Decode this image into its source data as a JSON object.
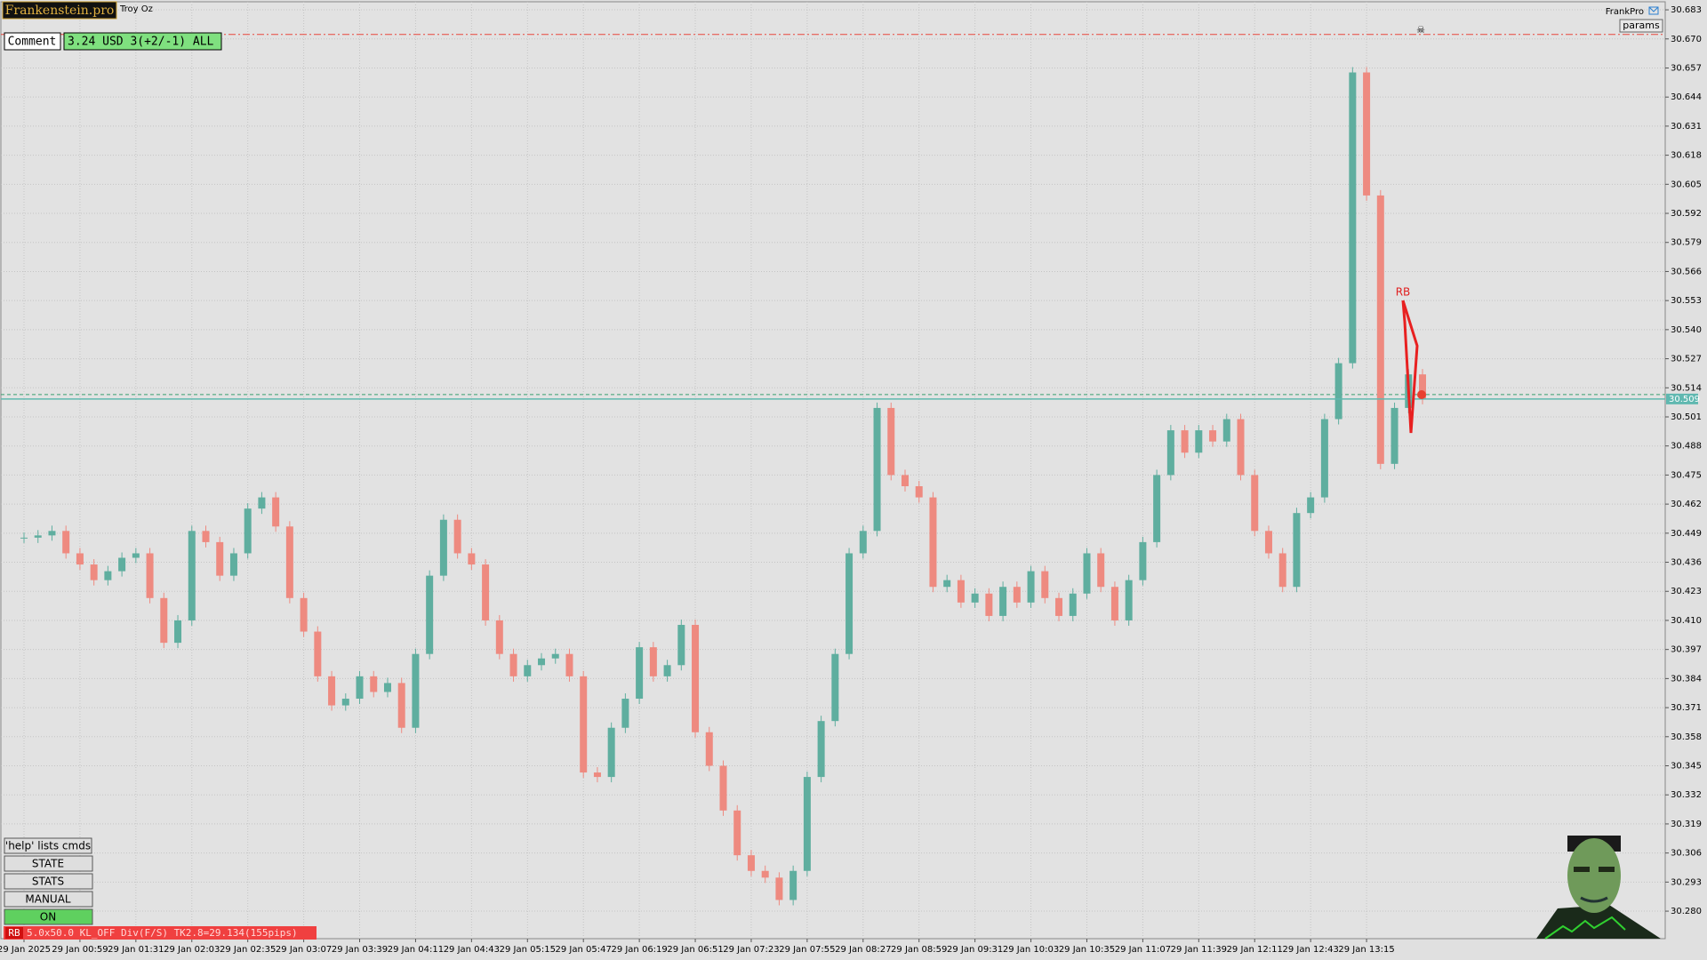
{
  "header": {
    "brand": "Frankenstein.pro",
    "symbol": "Troy Oz",
    "comment_label": "Comment",
    "comment_value": "3.24 USD 3(+2/-1) ALL",
    "ea_name": "FrankPro",
    "params": "params"
  },
  "buttons": [
    "'help' lists cmds",
    "STATE",
    "STATS",
    "MANUAL",
    "ON"
  ],
  "status": {
    "tag": "RB",
    "text": "5.0x50.0 KL_OFF Div(F/S) TK2.8=29.134(155pips)"
  },
  "annotation": "RB",
  "chart_data": {
    "type": "candlestick",
    "up_color": "#5fae9f",
    "down_color": "#ee8a80",
    "categories": [
      "29 Jan 2025",
      null,
      null,
      null,
      "29 Jan 00:59",
      null,
      null,
      null,
      "29 Jan 01:31",
      null,
      null,
      null,
      "29 Jan 02:03",
      null,
      null,
      null,
      "29 Jan 02:35",
      null,
      null,
      null,
      "29 Jan 03:07",
      null,
      null,
      null,
      "29 Jan 03:39",
      null,
      null,
      null,
      "29 Jan 04:11",
      null,
      null,
      null,
      "29 Jan 04:43",
      null,
      null,
      null,
      "29 Jan 05:15",
      null,
      null,
      null,
      "29 Jan 05:47",
      null,
      null,
      null,
      "29 Jan 06:19",
      null,
      null,
      null,
      "29 Jan 06:51",
      null,
      null,
      null,
      "29 Jan 07:23",
      null,
      null,
      null,
      "29 Jan 07:55",
      null,
      null,
      null,
      "29 Jan 08:27",
      null,
      null,
      null,
      "29 Jan 08:59",
      null,
      null,
      null,
      "29 Jan 09:31",
      null,
      null,
      null,
      "29 Jan 10:03",
      null,
      null,
      null,
      "29 Jan 10:35",
      null,
      null,
      null,
      "29 Jan 11:07",
      null,
      null,
      null,
      "29 Jan 11:39",
      null,
      null,
      null,
      "29 Jan 12:11",
      null,
      null,
      null,
      "29 Jan 12:43",
      null,
      null,
      null,
      "29 Jan 13:15",
      null,
      null,
      null,
      null
    ],
    "values": [
      30.447,
      30.448,
      30.45,
      30.44,
      30.435,
      30.428,
      30.432,
      30.438,
      30.44,
      30.42,
      30.4,
      30.41,
      30.45,
      30.445,
      30.43,
      30.44,
      30.46,
      30.465,
      30.452,
      30.42,
      30.405,
      30.385,
      30.372,
      30.375,
      30.385,
      30.378,
      30.382,
      30.362,
      30.395,
      30.43,
      30.455,
      30.44,
      30.435,
      30.41,
      30.395,
      30.385,
      30.39,
      30.393,
      30.395,
      30.385,
      30.342,
      30.34,
      30.362,
      30.375,
      30.398,
      30.385,
      30.39,
      30.408,
      30.36,
      30.345,
      30.325,
      30.305,
      30.298,
      30.295,
      30.285,
      30.298,
      30.34,
      30.365,
      30.395,
      30.44,
      30.45,
      30.505,
      30.475,
      30.47,
      30.465,
      30.425,
      30.428,
      30.418,
      30.422,
      30.412,
      30.425,
      30.418,
      30.432,
      30.42,
      30.412,
      30.422,
      30.44,
      30.425,
      30.41,
      30.428,
      30.445,
      30.475,
      30.495,
      30.485,
      30.495,
      30.49,
      30.5,
      30.475,
      30.45,
      30.44,
      30.425,
      30.458,
      30.465,
      30.5,
      30.525,
      30.655,
      30.6,
      30.48,
      30.505,
      30.52,
      30.509
    ],
    "ylim": [
      30.2677,
      30.6866
    ],
    "yticks": [
      {
        "value": 30.28,
        "label": "30.280"
      },
      30.293,
      30.306,
      30.319,
      30.332,
      30.345,
      30.358,
      30.371,
      30.384,
      30.397,
      {
        "value": 30.41,
        "label": "30.410"
      },
      30.423,
      30.436,
      30.449,
      30.462,
      30.475,
      30.488,
      30.501,
      30.514,
      30.527,
      {
        "value": 30.54,
        "label": "30.540"
      },
      30.553,
      30.566,
      30.579,
      30.592,
      30.605,
      30.618,
      30.631,
      30.644,
      30.657,
      {
        "value": 30.67,
        "label": "30.670"
      },
      30.683
    ],
    "grid": true,
    "levels": [
      {
        "value": 30.672,
        "color": "#e8463c",
        "style": "dashdot"
      },
      {
        "value": 30.511,
        "color": "#3aa070",
        "style": "dashed"
      }
    ],
    "bid": 30.509,
    "bid_color": "#5fb8b0"
  }
}
